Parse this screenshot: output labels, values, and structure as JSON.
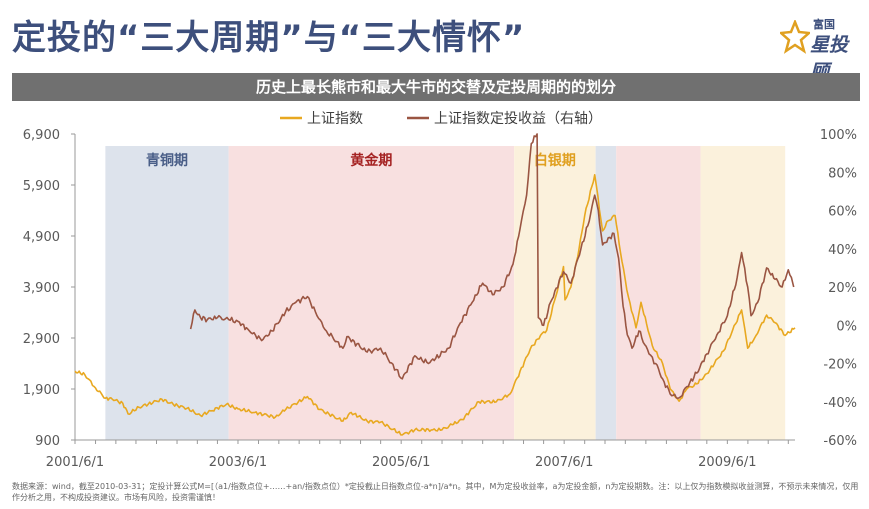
{
  "header": {
    "title": "定投的“三大周期”与“三大情怀”",
    "logo_small": "富国",
    "logo_main": "星投顾",
    "logo_color": "#3d4f7c"
  },
  "chart_data": {
    "type": "line",
    "title": "历史上最长熊市和最大牛市的交替及定投周期的的划分",
    "x_range": [
      "2001-06-01",
      "2010-03-31"
    ],
    "x_ticks": [
      "2001/6/1",
      "2003/6/1",
      "2005/6/1",
      "2007/6/1",
      "2009/6/1"
    ],
    "y_left": {
      "ticks": [
        "900",
        "1,900",
        "2,900",
        "3,900",
        "4,900",
        "5,900",
        "6,900"
      ],
      "range": [
        900,
        6900
      ]
    },
    "y_right": {
      "ticks": [
        "-60%",
        "-40%",
        "-20%",
        "0%",
        "20%",
        "40%",
        "60%",
        "80%",
        "100%"
      ],
      "range": [
        -60,
        100
      ]
    },
    "legend_position": "top-center",
    "periods": [
      {
        "label": "青铜期",
        "start": "2001-10-15",
        "end": "2003-04-20",
        "color": "#dde3ec",
        "label_color": "#4a5f88"
      },
      {
        "label": "黄金期",
        "start": "2003-04-20",
        "end": "2006-10-20",
        "color": "#f8e0e0",
        "label_color": "#a52323"
      },
      {
        "label": "白银期",
        "start": "2006-10-20",
        "end": "2007-10-20",
        "color": "#fbf1dc",
        "label_color": "#e0a020"
      },
      {
        "label": "",
        "start": "2007-10-20",
        "end": "2008-01-20",
        "color": "#dde3ec"
      },
      {
        "label": "",
        "start": "2008-01-20",
        "end": "2009-02-01",
        "color": "#f8e0e0"
      },
      {
        "label": "",
        "start": "2009-02-01",
        "end": "2010-02-15",
        "color": "#fbf1dc"
      }
    ],
    "series": [
      {
        "name": "上证指数",
        "axis": "left",
        "color": "#e8a820",
        "points": [
          [
            "2001-06-01",
            2250
          ],
          [
            "2001-07-15",
            2180
          ],
          [
            "2001-09-01",
            1920
          ],
          [
            "2001-10-15",
            1720
          ],
          [
            "2001-11-15",
            1700
          ],
          [
            "2002-01-01",
            1620
          ],
          [
            "2002-01-25",
            1410
          ],
          [
            "2002-03-15",
            1540
          ],
          [
            "2002-06-25",
            1700
          ],
          [
            "2002-08-15",
            1600
          ],
          [
            "2002-10-15",
            1520
          ],
          [
            "2002-12-15",
            1380
          ],
          [
            "2003-01-30",
            1470
          ],
          [
            "2003-04-10",
            1600
          ],
          [
            "2003-06-01",
            1510
          ],
          [
            "2003-08-15",
            1440
          ],
          [
            "2003-11-15",
            1350
          ],
          [
            "2004-01-01",
            1500
          ],
          [
            "2004-04-07",
            1750
          ],
          [
            "2004-06-01",
            1500
          ],
          [
            "2004-09-13",
            1270
          ],
          [
            "2004-10-20",
            1440
          ],
          [
            "2004-12-31",
            1270
          ],
          [
            "2005-03-01",
            1250
          ],
          [
            "2005-06-06",
            1000
          ],
          [
            "2005-08-01",
            1100
          ],
          [
            "2005-10-20",
            1100
          ],
          [
            "2005-12-01",
            1100
          ],
          [
            "2006-01-15",
            1200
          ],
          [
            "2006-03-01",
            1300
          ],
          [
            "2006-05-15",
            1650
          ],
          [
            "2006-08-01",
            1650
          ],
          [
            "2006-10-01",
            1800
          ],
          [
            "2006-12-31",
            2680
          ],
          [
            "2007-02-15",
            2950
          ],
          [
            "2007-03-15",
            3050
          ],
          [
            "2007-05-29",
            4300
          ],
          [
            "2007-06-05",
            3650
          ],
          [
            "2007-07-01",
            3900
          ],
          [
            "2007-08-01",
            4500
          ],
          [
            "2007-09-01",
            5300
          ],
          [
            "2007-10-16",
            6100
          ],
          [
            "2007-11-20",
            5000
          ],
          [
            "2007-12-15",
            5200
          ],
          [
            "2008-01-15",
            5300
          ],
          [
            "2008-02-15",
            4400
          ],
          [
            "2008-03-15",
            3700
          ],
          [
            "2008-04-18",
            3100
          ],
          [
            "2008-05-10",
            3600
          ],
          [
            "2008-06-30",
            2750
          ],
          [
            "2008-08-15",
            2400
          ],
          [
            "2008-09-18",
            1900
          ],
          [
            "2008-10-28",
            1660
          ],
          [
            "2008-12-01",
            1900
          ],
          [
            "2009-01-15",
            2000
          ],
          [
            "2009-03-01",
            2200
          ],
          [
            "2009-05-15",
            2650
          ],
          [
            "2009-08-04",
            3450
          ],
          [
            "2009-08-31",
            2700
          ],
          [
            "2009-10-01",
            2900
          ],
          [
            "2009-11-24",
            3350
          ],
          [
            "2010-01-01",
            3200
          ],
          [
            "2010-02-15",
            2950
          ],
          [
            "2010-03-31",
            3100
          ]
        ]
      },
      {
        "name": "上证指数定投收益（右轴）",
        "axis": "right",
        "color": "#9a5542",
        "points": [
          [
            "2002-11-01",
            -2
          ],
          [
            "2002-11-20",
            8
          ],
          [
            "2002-12-15",
            4
          ],
          [
            "2003-01-15",
            3
          ],
          [
            "2003-03-01",
            4
          ],
          [
            "2003-04-20",
            3
          ],
          [
            "2003-06-01",
            2
          ],
          [
            "2003-07-15",
            -2
          ],
          [
            "2003-09-15",
            -8
          ],
          [
            "2003-11-01",
            -3
          ],
          [
            "2003-12-31",
            7
          ],
          [
            "2004-02-15",
            12
          ],
          [
            "2004-04-07",
            15
          ],
          [
            "2004-05-20",
            5
          ],
          [
            "2004-07-01",
            -3
          ],
          [
            "2004-09-13",
            -12
          ],
          [
            "2004-10-01",
            -6
          ],
          [
            "2004-12-31",
            -14
          ],
          [
            "2005-03-01",
            -12
          ],
          [
            "2005-06-06",
            -28
          ],
          [
            "2005-08-01",
            -16
          ],
          [
            "2005-10-01",
            -20
          ],
          [
            "2005-12-31",
            -12
          ],
          [
            "2006-02-15",
            0
          ],
          [
            "2006-04-15",
            12
          ],
          [
            "2006-06-01",
            22
          ],
          [
            "2006-07-15",
            16
          ],
          [
            "2006-08-31",
            20
          ],
          [
            "2006-10-15",
            32
          ],
          [
            "2006-11-15",
            50
          ],
          [
            "2006-12-15",
            68
          ],
          [
            "2007-01-05",
            95
          ],
          [
            "2007-01-31",
            100
          ],
          [
            "2007-02-05",
            4
          ],
          [
            "2007-03-01",
            0
          ],
          [
            "2007-04-01",
            12
          ],
          [
            "2007-05-29",
            28
          ],
          [
            "2007-07-01",
            22
          ],
          [
            "2007-08-15",
            40
          ],
          [
            "2007-09-15",
            52
          ],
          [
            "2007-10-16",
            68
          ],
          [
            "2007-11-01",
            60
          ],
          [
            "2007-11-20",
            42
          ],
          [
            "2008-01-10",
            48
          ],
          [
            "2008-01-31",
            35
          ],
          [
            "2008-02-20",
            10
          ],
          [
            "2008-03-10",
            -5
          ],
          [
            "2008-03-31",
            -12
          ],
          [
            "2008-05-01",
            -3
          ],
          [
            "2008-06-15",
            -15
          ],
          [
            "2008-07-15",
            -20
          ],
          [
            "2008-08-15",
            -28
          ],
          [
            "2008-09-18",
            -36
          ],
          [
            "2008-10-28",
            -38
          ],
          [
            "2008-12-15",
            -30
          ],
          [
            "2009-01-15",
            -25
          ],
          [
            "2009-03-01",
            -15
          ],
          [
            "2009-04-15",
            -5
          ],
          [
            "2009-06-01",
            5
          ],
          [
            "2009-07-15",
            25
          ],
          [
            "2009-08-04",
            38
          ],
          [
            "2009-08-31",
            20
          ],
          [
            "2009-09-15",
            5
          ],
          [
            "2009-10-15",
            12
          ],
          [
            "2009-11-24",
            30
          ],
          [
            "2010-01-01",
            24
          ],
          [
            "2010-02-01",
            20
          ],
          [
            "2010-03-01",
            29
          ],
          [
            "2010-03-15",
            25
          ],
          [
            "2010-03-25",
            20
          ]
        ]
      }
    ]
  },
  "footnote": "数据来源：wind，截至2010-03-31；定投计算公式M=[（a1/指数点位+……+an/指数点位）*定投截止日指数点位-a*n]/a*n。其中，M为定投收益率，a为定投金额，n为定投期数。注：以上仅为指数模拟收益测算，不预示未来情况，仅用作分析之用，不构成投资建议。市场有风险，投资需谨慎！"
}
